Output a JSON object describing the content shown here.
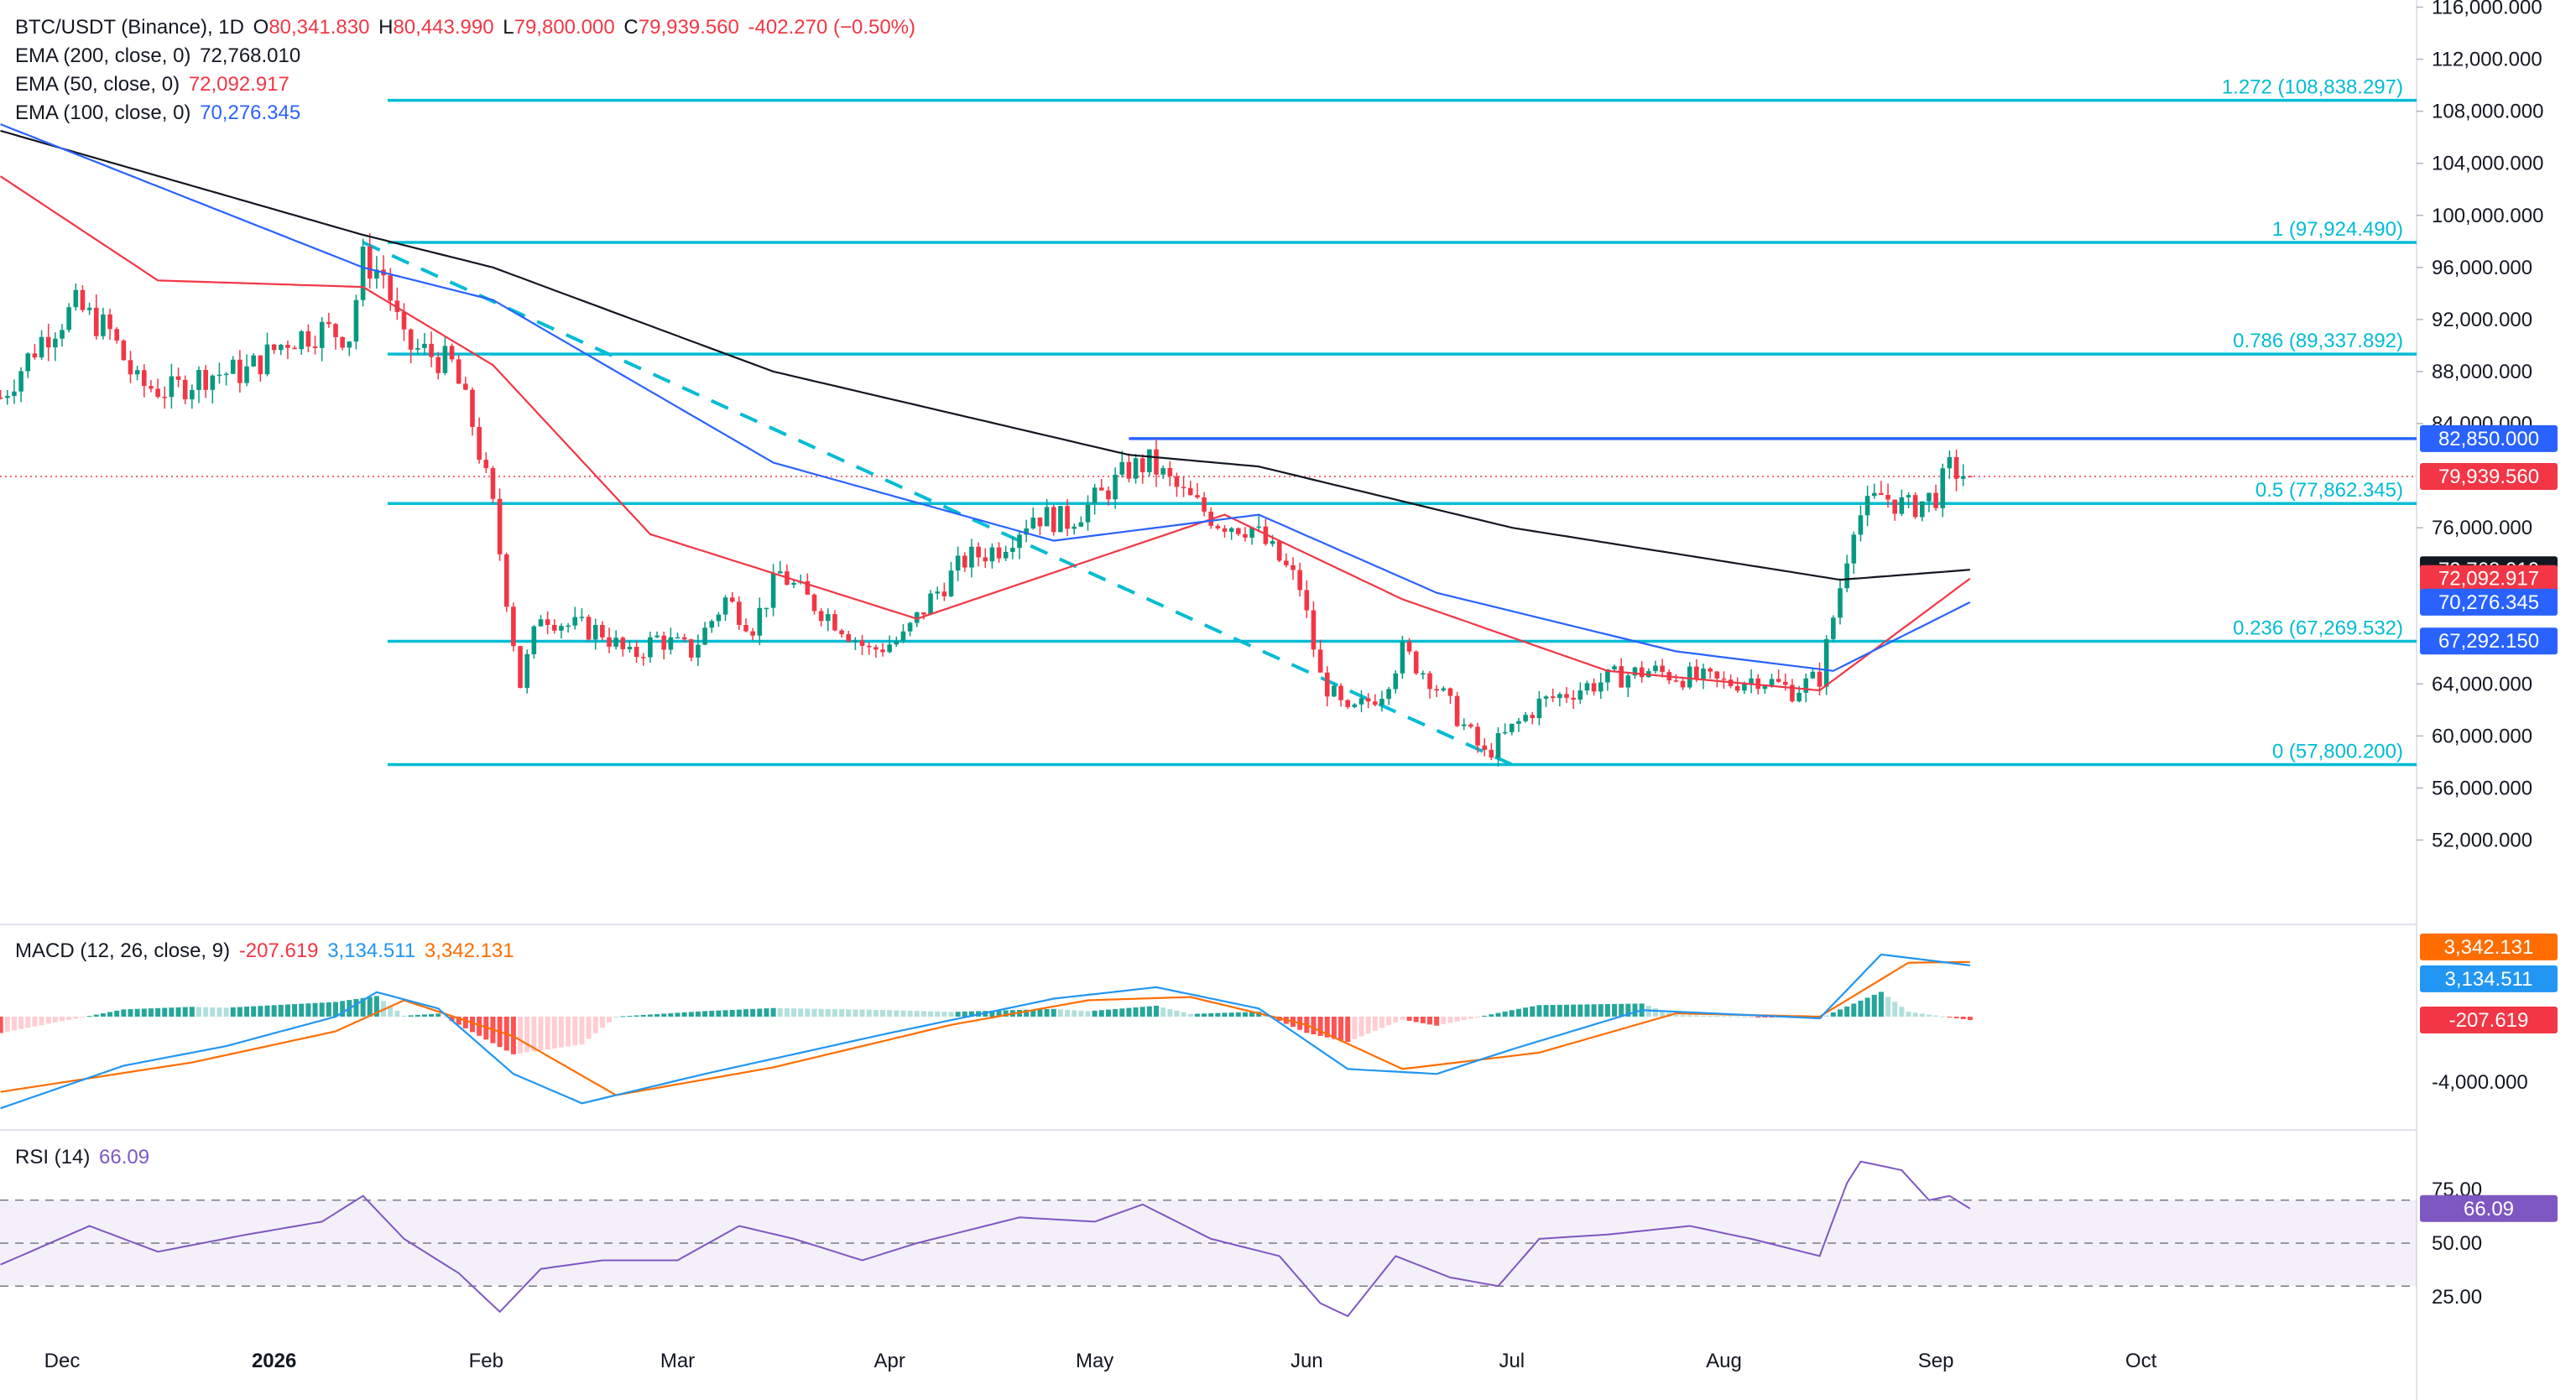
{
  "header": {
    "symbol": "BTC/USDT (Binance), 1D",
    "open_label": "O",
    "open": "80,341.830",
    "high_label": "H",
    "high": "80,443.990",
    "low_label": "L",
    "low": "79,800.000",
    "close_label": "C",
    "close": "79,939.560",
    "change": "-402.270 (−0.50%)",
    "ema200_label": "EMA (200, close, 0)",
    "ema200_value": "72,768.010",
    "ema50_label": "EMA (50, close, 0)",
    "ema50_value": "72,092.917",
    "ema100_label": "EMA (100, close, 0)",
    "ema100_value": "70,276.345",
    "macd_label": "MACD (12, 26, close, 9)",
    "macd_hist": "-207.619",
    "macd_line": "3,134.511",
    "macd_signal": "3,342.131",
    "rsi_label": "RSI (14)",
    "rsi_value": "66.09"
  },
  "colors": {
    "up": "#089981",
    "down": "#f23645",
    "ema200": "#131722",
    "ema50": "#f23645",
    "ema100": "#2962ff",
    "fib": "#00bcd4",
    "resistance": "#2962ff",
    "macd": "#2196f3",
    "signal": "#ff6d00",
    "rsi": "#7e57c2"
  },
  "chart_data": [
    {
      "type": "candlestick",
      "title": "BTC/USDT (Binance), 1D",
      "x_ticks": [
        "Dec",
        "2026",
        "Feb",
        "Mar",
        "Apr",
        "May",
        "Jun",
        "Jul",
        "Aug",
        "Sep",
        "Oct"
      ],
      "y_ticks": [
        "116,000.000",
        "112,000.000",
        "108,000.000",
        "104,000.000",
        "100,000.000",
        "96,000.000",
        "92,000.000",
        "88,000.000",
        "84,000.000",
        "76,000.000",
        "64,000.000",
        "60,000.000",
        "56,000.000",
        "52,000.000"
      ],
      "ylim": [
        49000,
        117000
      ],
      "grid": false,
      "close_path": [
        [
          "Nov 22",
          86000
        ],
        [
          "Nov 28",
          90500
        ],
        [
          "Dec 3",
          93000
        ],
        [
          "Dec 8",
          91000
        ],
        [
          "Dec 12",
          87000
        ],
        [
          "Dec 17",
          86500
        ],
        [
          "Dec 22",
          87800
        ],
        [
          "Dec 28",
          88000
        ],
        [
          "Jan 3",
          90500
        ],
        [
          "Jan 8",
          91200
        ],
        [
          "Jan 12",
          90800
        ],
        [
          "Jan 14",
          96500
        ],
        [
          "Jan 17",
          95500
        ],
        [
          "Jan 20",
          90000
        ],
        [
          "Jan 23",
          89500
        ],
        [
          "Jan 27",
          88500
        ],
        [
          "Jan 30",
          84000
        ],
        [
          "Feb 2",
          77500
        ],
        [
          "Feb 6",
          64000
        ],
        [
          "Feb 9",
          69500
        ],
        [
          "Feb 13",
          68500
        ],
        [
          "Feb 18",
          68000
        ],
        [
          "Feb 22",
          66000
        ],
        [
          "Feb 26",
          67500
        ],
        [
          "Mar 3",
          66500
        ],
        [
          "Mar 8",
          70500
        ],
        [
          "Mar 12",
          68500
        ],
        [
          "Mar 16",
          72500
        ],
        [
          "Mar 20",
          70500
        ],
        [
          "Mar 25",
          68500
        ],
        [
          "Mar 29",
          66500
        ],
        [
          "Apr 3",
          67500
        ],
        [
          "Apr 7",
          70500
        ],
        [
          "Apr 12",
          73500
        ],
        [
          "Apr 17",
          74500
        ],
        [
          "Apr 22",
          77000
        ],
        [
          "Apr 27",
          76500
        ],
        [
          "May 2",
          78500
        ],
        [
          "May 6",
          80500
        ],
        [
          "May 9",
          81000
        ],
        [
          "May 14",
          78500
        ],
        [
          "May 19",
          76500
        ],
        [
          "May 24",
          76000
        ],
        [
          "May 28",
          73500
        ],
        [
          "May 31",
          71500
        ],
        [
          "Jun 3",
          64500
        ],
        [
          "Jun 7",
          61500
        ],
        [
          "Jun 12",
          63500
        ],
        [
          "Jun 15",
          66500
        ],
        [
          "Jun 19",
          64500
        ],
        [
          "Jun 23",
          61500
        ],
        [
          "Jun 27",
          58500
        ],
        [
          "Jun 30",
          60000
        ],
        [
          "Jul 5",
          62500
        ],
        [
          "Jul 10",
          63500
        ],
        [
          "Jul 16",
          64500
        ],
        [
          "Jul 21",
          65000
        ],
        [
          "Jul 27",
          64500
        ],
        [
          "Aug 1",
          64000
        ],
        [
          "Aug 6",
          64500
        ],
        [
          "Aug 11",
          63500
        ],
        [
          "Aug 15",
          64500
        ],
        [
          "Aug 18",
          71500
        ],
        [
          "Aug 20",
          76500
        ],
        [
          "Aug 24",
          78500
        ],
        [
          "Aug 28",
          77500
        ],
        [
          "Sep 1",
          78500
        ],
        [
          "Sep 3",
          80500
        ],
        [
          "Sep 6",
          79939.56
        ]
      ],
      "ema200_path": [
        [
          "Nov 22",
          106500
        ],
        [
          "Jan 14",
          98500
        ],
        [
          "Feb 2",
          96000
        ],
        [
          "Mar 15",
          88000
        ],
        [
          "May 6",
          81600
        ],
        [
          "May 25",
          80700
        ],
        [
          "Jul 1",
          76000
        ],
        [
          "Aug 18",
          72000
        ],
        [
          "Sep 6",
          72768.01
        ]
      ],
      "ema50_path": [
        [
          "Nov 22",
          103000
        ],
        [
          "Dec 15",
          95000
        ],
        [
          "Jan 14",
          94500
        ],
        [
          "Feb 2",
          88500
        ],
        [
          "Feb 25",
          75500
        ],
        [
          "Apr 5",
          69000
        ],
        [
          "May 20",
          77000
        ],
        [
          "Jun 15",
          70500
        ],
        [
          "Jul 15",
          65000
        ],
        [
          "Aug 15",
          63500
        ],
        [
          "Sep 6",
          72092.917
        ]
      ],
      "ema100_path": [
        [
          "Nov 22",
          107000
        ],
        [
          "Jan 14",
          96000
        ],
        [
          "Feb 2",
          93500
        ],
        [
          "Mar 15",
          81000
        ],
        [
          "Apr 25",
          75000
        ],
        [
          "May 25",
          77000
        ],
        [
          "Jun 20",
          71000
        ],
        [
          "Jul 25",
          66500
        ],
        [
          "Aug 17",
          65000
        ],
        [
          "Sep 6",
          70276.345
        ]
      ],
      "levels": [
        {
          "label": "1.272 (108,838.297)",
          "value": 108838.297
        },
        {
          "label": "1 (97,924.490)",
          "value": 97924.49
        },
        {
          "label": "0.786 (89,337.892)",
          "value": 89337.892
        },
        {
          "label": "0.5 (77,862.345)",
          "value": 77862.345
        },
        {
          "label": "0.236 (67,269.532)",
          "value": 67269.532
        },
        {
          "label": "0 (57,800.200)",
          "value": 57800.2
        }
      ],
      "resistance": {
        "label": "82,850.000",
        "value": 82850,
        "from": "May 6"
      },
      "trendline": {
        "from": [
          "Jan 14",
          97924.49
        ],
        "to": [
          "Jul 1",
          57800.2
        ]
      },
      "price_tags": [
        {
          "label": "82,850.000",
          "value": 82850,
          "color": "#2962ff"
        },
        {
          "label": "79,939.560",
          "value": 79939.56,
          "color": "#f23645"
        },
        {
          "label": "72,768.010",
          "value": 72768.01,
          "color": "#131722"
        },
        {
          "label": "72,092.917",
          "value": 72092.917,
          "color": "#f23645"
        },
        {
          "label": "70,276.345",
          "value": 70276.345,
          "color": "#2962ff"
        },
        {
          "label": "67,292.150",
          "value": 67292.15,
          "color": "#2962ff"
        }
      ]
    },
    {
      "type": "line",
      "title": "MACD (12, 26, close, 9)",
      "y_ticks": [
        "-4,000.000"
      ],
      "ylim": [
        -7000,
        4500
      ],
      "macd_path": [
        [
          "Nov 22",
          -5600
        ],
        [
          "Dec 10",
          -3000
        ],
        [
          "Dec 25",
          -1800
        ],
        [
          "Jan 10",
          0
        ],
        [
          "Jan 16",
          1500
        ],
        [
          "Jan 25",
          500
        ],
        [
          "Feb 5",
          -3500
        ],
        [
          "Feb 15",
          -5300
        ],
        [
          "Mar 5",
          -3500
        ],
        [
          "Apr 1",
          -1000
        ],
        [
          "Apr 25",
          1100
        ],
        [
          "May 10",
          1800
        ],
        [
          "May 25",
          500
        ],
        [
          "Jun 7",
          -3200
        ],
        [
          "Jun 20",
          -3500
        ],
        [
          "Jul 1",
          -2000
        ],
        [
          "Jul 20",
          400
        ],
        [
          "Aug 15",
          -100
        ],
        [
          "Aug 24",
          3800
        ],
        [
          "Sep 6",
          3134.511
        ]
      ],
      "signal_path": [
        [
          "Nov 22",
          -4600
        ],
        [
          "Dec 20",
          -2800
        ],
        [
          "Jan 10",
          -900
        ],
        [
          "Jan 20",
          1000
        ],
        [
          "Feb 5",
          -1200
        ],
        [
          "Feb 20",
          -4800
        ],
        [
          "Mar 15",
          -3100
        ],
        [
          "Apr 10",
          -500
        ],
        [
          "Apr 30",
          1000
        ],
        [
          "May 15",
          1200
        ],
        [
          "Jun 1",
          -500
        ],
        [
          "Jun 15",
          -3200
        ],
        [
          "Jul 5",
          -2200
        ],
        [
          "Jul 25",
          200
        ],
        [
          "Aug 15",
          0
        ],
        [
          "Aug 28",
          3300
        ],
        [
          "Sep 6",
          3342.131
        ]
      ],
      "tags": [
        {
          "label": "3,342.131",
          "value": 3342.131,
          "color": "#ff6d00"
        },
        {
          "label": "3,134.511",
          "value": 3134.511,
          "color": "#2196f3"
        },
        {
          "label": "-207.619",
          "value": -207.619,
          "color": "#f23645"
        }
      ]
    },
    {
      "type": "line",
      "title": "RSI (14)",
      "y_ticks": [
        "75.00",
        "50.00",
        "25.00"
      ],
      "ylim": [
        10,
        95
      ],
      "bands": [
        70,
        50,
        30
      ],
      "rsi_path": [
        [
          "Nov 22",
          40
        ],
        [
          "Dec 5",
          58
        ],
        [
          "Dec 15",
          46
        ],
        [
          "Dec 28",
          54
        ],
        [
          "Jan 8",
          60
        ],
        [
          "Jan 14",
          72
        ],
        [
          "Jan 20",
          52
        ],
        [
          "Jan 28",
          36
        ],
        [
          "Feb 3",
          18
        ],
        [
          "Feb 9",
          38
        ],
        [
          "Feb 18",
          42
        ],
        [
          "Mar 1",
          42
        ],
        [
          "Mar 10",
          58
        ],
        [
          "Mar 18",
          52
        ],
        [
          "Mar 28",
          42
        ],
        [
          "Apr 5",
          50
        ],
        [
          "Apr 20",
          62
        ],
        [
          "May 1",
          60
        ],
        [
          "May 8",
          68
        ],
        [
          "May 18",
          52
        ],
        [
          "May 28",
          44
        ],
        [
          "Jun 3",
          22
        ],
        [
          "Jun 7",
          16
        ],
        [
          "Jun 14",
          44
        ],
        [
          "Jun 22",
          34
        ],
        [
          "Jun 29",
          30
        ],
        [
          "Jul 5",
          52
        ],
        [
          "Jul 15",
          54
        ],
        [
          "Jul 27",
          58
        ],
        [
          "Aug 5",
          52
        ],
        [
          "Aug 15",
          44
        ],
        [
          "Aug 19",
          78
        ],
        [
          "Aug 21",
          88
        ],
        [
          "Aug 27",
          84
        ],
        [
          "Aug 31",
          70
        ],
        [
          "Sep 3",
          72
        ],
        [
          "Sep 6",
          66.09
        ]
      ],
      "tag": {
        "label": "66.09",
        "value": 66.09,
        "color": "#7e57c2"
      }
    }
  ]
}
